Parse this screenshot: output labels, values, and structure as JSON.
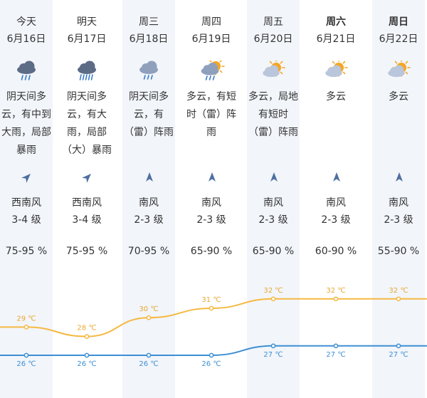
{
  "colors": {
    "high_line": "#f5b942",
    "low_line": "#3d8fd4",
    "high_text": "#e9a830",
    "low_text": "#3d8fd4",
    "shaded_column": "#f2f5fa",
    "arrow": "#4f6fa0"
  },
  "days": [
    {
      "day": "今天",
      "bold": false,
      "date": "6月16日",
      "icon": "heavy-rain-cloud-icon",
      "condition": "阴天间多云，有中到大雨，局部暴雨",
      "wind_dir": "southwest-arrow-icon",
      "wind_angle": 45,
      "wind": "西南风",
      "level": "3-4 级",
      "humidity": "75-95 %",
      "shaded": true
    },
    {
      "day": "明天",
      "bold": false,
      "date": "6月17日",
      "icon": "rainstorm-cloud-icon",
      "condition": "阴天间多云，有大雨，局部（大）暴雨",
      "wind_dir": "southwest-arrow-icon",
      "wind_angle": 45,
      "wind": "西南风",
      "level": "3-4 级",
      "humidity": "75-95 %",
      "shaded": false
    },
    {
      "day": "周三",
      "bold": false,
      "date": "6月18日",
      "icon": "thunder-shower-cloud-icon",
      "condition": "阴天间多云，有（雷）阵雨",
      "wind_dir": "south-arrow-icon",
      "wind_angle": 0,
      "wind": "南风",
      "level": "2-3 级",
      "humidity": "70-95 %",
      "shaded": true
    },
    {
      "day": "周四",
      "bold": false,
      "date": "6月19日",
      "icon": "partly-cloudy-shower-icon",
      "condition": "多云，有短时（雷）阵雨",
      "wind_dir": "south-arrow-icon",
      "wind_angle": 0,
      "wind": "南风",
      "level": "2-3 级",
      "humidity": "65-90 %",
      "shaded": false
    },
    {
      "day": "周五",
      "bold": false,
      "date": "6月20日",
      "icon": "sun-behind-cloud-icon",
      "condition": "多云，局地有短时（雷）阵雨",
      "wind_dir": "south-arrow-icon",
      "wind_angle": 0,
      "wind": "南风",
      "level": "2-3 级",
      "humidity": "65-90 %",
      "shaded": true
    },
    {
      "day": "周六",
      "bold": true,
      "date": "6月21日",
      "icon": "sun-behind-cloud-icon",
      "condition": "多云",
      "wind_dir": "south-arrow-icon",
      "wind_angle": 0,
      "wind": "南风",
      "level": "2-3 级",
      "humidity": "60-90 %",
      "shaded": false
    },
    {
      "day": "周日",
      "bold": true,
      "date": "6月22日",
      "icon": "sun-behind-cloud-icon",
      "condition": "多云",
      "wind_dir": "south-arrow-icon",
      "wind_angle": 0,
      "wind": "南风",
      "level": "2-3 级",
      "humidity": "55-90 %",
      "shaded": true
    }
  ],
  "temps": {
    "high": [
      29,
      28,
      30,
      31,
      32,
      32,
      32
    ],
    "low": [
      26,
      26,
      26,
      26,
      27,
      27,
      27
    ],
    "high_labels": [
      "29 ℃",
      "28 ℃",
      "30 ℃",
      "31 ℃",
      "32 ℃",
      "32 ℃",
      "32 ℃"
    ],
    "low_labels": [
      "26 ℃",
      "26 ℃",
      "26 ℃",
      "26 ℃",
      "27 ℃",
      "27 ℃",
      "27 ℃"
    ]
  }
}
